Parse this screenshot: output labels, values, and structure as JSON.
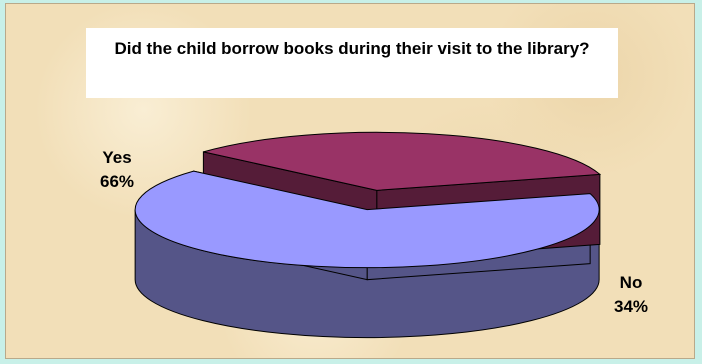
{
  "chart_data": {
    "type": "pie",
    "title": "Did the child borrow books during their visit to the library?",
    "categories": [
      "Yes",
      "No"
    ],
    "values": [
      66,
      34
    ],
    "value_labels": [
      "66%",
      "34%"
    ],
    "colors": {
      "Yes": {
        "top": "#9999ff",
        "side": "#555588"
      },
      "No": {
        "top": "#993366",
        "side": "#551c38"
      }
    },
    "style": "3d-exploded",
    "legend": "none"
  }
}
